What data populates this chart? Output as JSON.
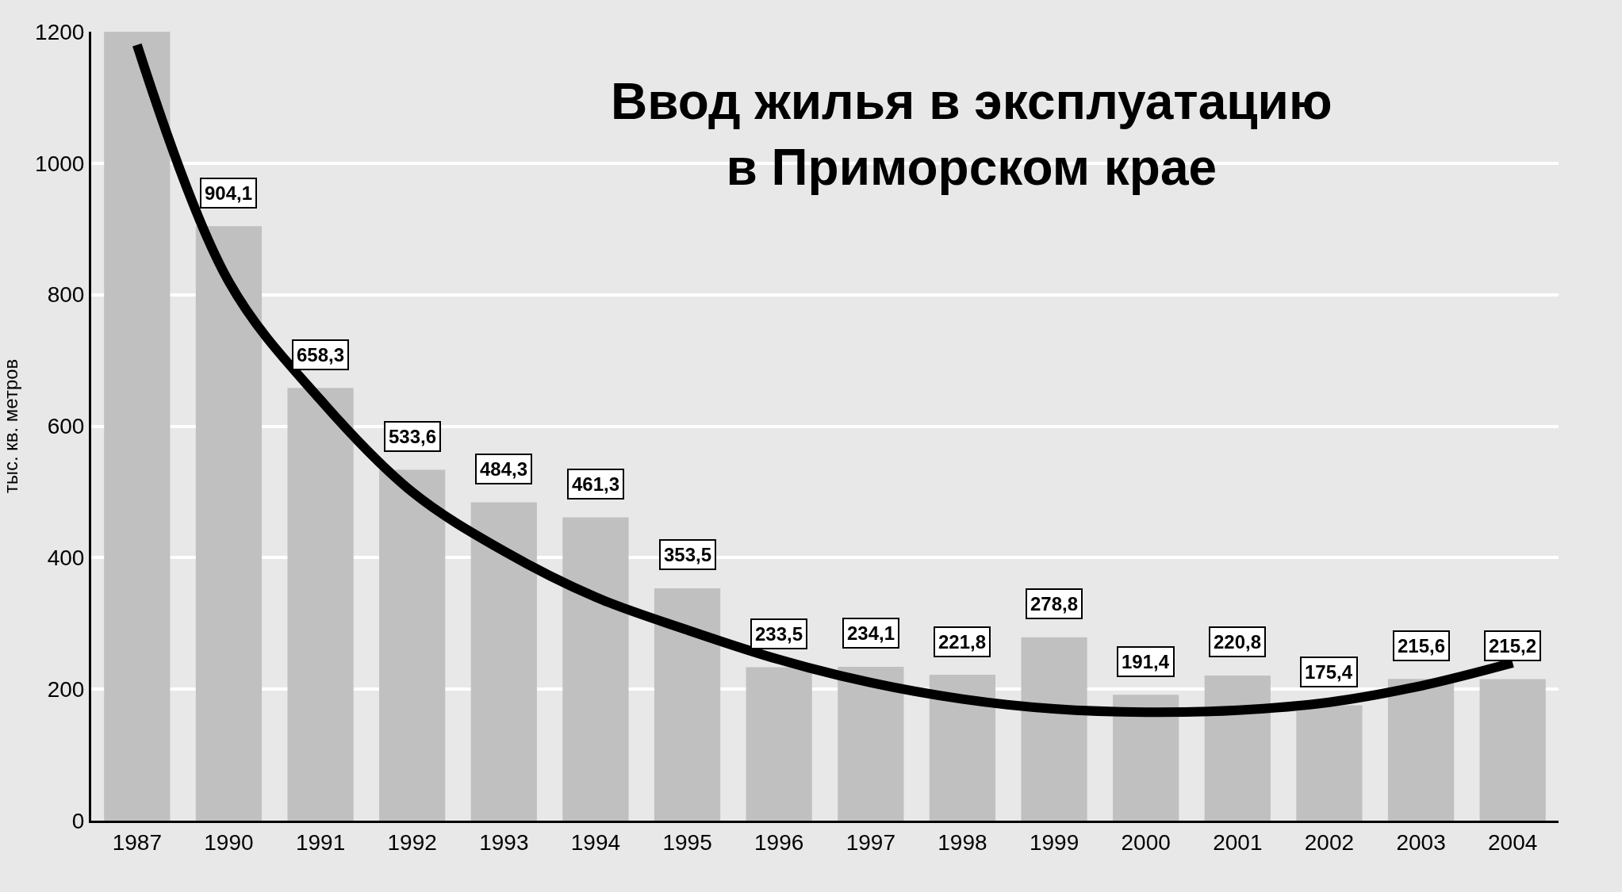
{
  "chart_data": {
    "type": "bar",
    "title": "Ввод жилья в эксплуатацию\nв Приморском крае",
    "ylabel": "тыс. кв. метров",
    "categories": [
      "1987",
      "1990",
      "1991",
      "1992",
      "1993",
      "1994",
      "1995",
      "1996",
      "1997",
      "1998",
      "1999",
      "2000",
      "2001",
      "2002",
      "2003",
      "2004"
    ],
    "series": [
      {
        "color": "#c0c0c0",
        "values": [
          1200,
          904.1,
          658.3,
          533.6,
          484.3,
          461.3,
          353.5,
          233.5,
          234.1,
          221.8,
          278.8,
          191.4,
          220.8,
          175.4,
          215.6,
          215.2
        ],
        "value_labels": [
          null,
          "904,1",
          "658,3",
          "533,6",
          "484,3",
          "461,3",
          "353,5",
          "233,5",
          "234,1",
          "221,8",
          "278,8",
          "191,4",
          "220,8",
          "175,4",
          "215,6",
          "215,2"
        ]
      },
      {
        "type": "line",
        "color": "#000000",
        "values": [
          1180,
          820,
          640,
          500,
          410,
          340,
          290,
          245,
          210,
          185,
          170,
          165,
          168,
          180,
          205,
          240
        ]
      }
    ],
    "ylim": [
      0,
      1200
    ],
    "yticks": [
      0,
      200,
      400,
      600,
      800,
      1000,
      1200
    ],
    "grid": "y"
  }
}
